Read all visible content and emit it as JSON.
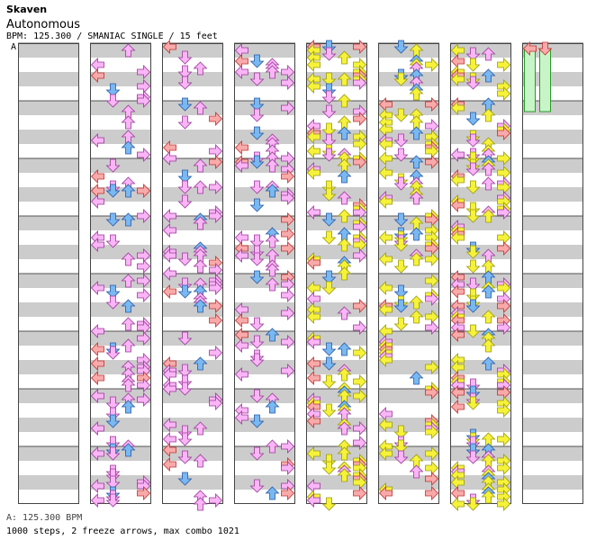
{
  "song": {
    "artist": "Skaven",
    "title": "Autonomous",
    "bpm_line": "BPM: 125.300 / SMANIAC SINGLE / 15 feet",
    "section_label": "A",
    "footer_bpm": "A: 125.300 BPM",
    "stats": "1000 steps, 2 freeze arrows, max combo 1021"
  },
  "colors": {
    "quarter": "#f9b5f5",
    "quarter_stroke": "#9a3a9a",
    "eighth": "#f8aaaa",
    "eighth_stroke": "#c03030",
    "blue": "#79b8f0",
    "blue_stroke": "#2a5aa8",
    "sixteenth": "#f6f23a",
    "sixteenth_stroke": "#9a9a10",
    "freeze": "#c8f5c8",
    "freeze_stroke": "#2a9a2a",
    "stripe": "#cccccc"
  },
  "chart": {
    "columns": 8,
    "measures_per_column": 8,
    "freeze_arrows": [
      {
        "column": 8,
        "lane": "left",
        "measure_start": 0,
        "measure_end": 1
      },
      {
        "column": 8,
        "lane": "down",
        "measure_start": 0,
        "measure_end": 1
      }
    ]
  }
}
